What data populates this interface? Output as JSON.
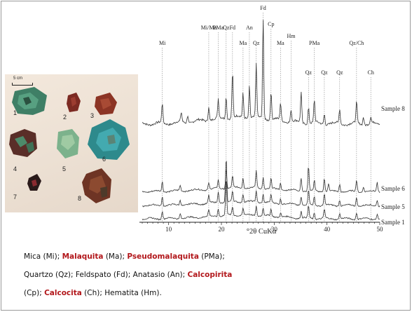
{
  "photo": {
    "scale_label": "5 cm",
    "samples": [
      "1",
      "2",
      "3",
      "4",
      "5",
      "6",
      "7",
      "8"
    ]
  },
  "chart_data": {
    "type": "line",
    "title": "",
    "xlabel": "°2θ CuKα",
    "ylabel": "",
    "xlim": [
      5,
      50
    ],
    "x_ticks": [
      "10",
      "20",
      "30",
      "40",
      "50"
    ],
    "grid": false,
    "legend": "none",
    "series": [
      {
        "name": "Sample 8",
        "label_position": "right"
      },
      {
        "name": "Sample 6",
        "label_position": "right"
      },
      {
        "name": "Sample 5",
        "label_position": "right"
      },
      {
        "name": "Sample 1",
        "label_position": "right"
      }
    ],
    "peaks": [
      {
        "label": "Mi",
        "x": 8.8
      },
      {
        "label": "Mi/Ma",
        "x": 17.6
      },
      {
        "label": "PMa",
        "x": 19.4
      },
      {
        "label": "Qz",
        "x": 20.9
      },
      {
        "label": "Fd",
        "x": 22.1
      },
      {
        "label": "Ma",
        "x": 24.1
      },
      {
        "label": "An",
        "x": 25.3
      },
      {
        "label": "Qz",
        "x": 26.6
      },
      {
        "label": "Fd",
        "x": 27.9
      },
      {
        "label": "Cp",
        "x": 29.4
      },
      {
        "label": "Ma",
        "x": 31.2
      },
      {
        "label": "Hm",
        "x": 33.2
      },
      {
        "label": "Qz",
        "x": 36.5
      },
      {
        "label": "PMa",
        "x": 37.6
      },
      {
        "label": "Qz",
        "x": 39.5
      },
      {
        "label": "Qz",
        "x": 42.4
      },
      {
        "label": "Qz/Ch",
        "x": 45.6
      },
      {
        "label": "Ch",
        "x": 48.3
      }
    ]
  },
  "caption": {
    "line1": [
      {
        "t": "Mica (Mi); ",
        "hl": false
      },
      {
        "t": "Malaquita",
        "hl": true
      },
      {
        "t": " (Ma); ",
        "hl": false
      },
      {
        "t": "Pseudomalaquita",
        "hl": true
      },
      {
        "t": " (PMa);",
        "hl": false
      }
    ],
    "line2": [
      {
        "t": "Quartzo (Qz); Feldspato (Fd); Anatasio (An); ",
        "hl": false
      },
      {
        "t": "Calcopirita",
        "hl": true
      }
    ],
    "line3": [
      {
        "t": "(Cp); ",
        "hl": false
      },
      {
        "t": "Calcocita",
        "hl": true
      },
      {
        "t": " (Ch); Hematita (Hm).",
        "hl": false
      }
    ]
  },
  "colors": {
    "highlight": "#b2171b",
    "frame": "#9a9a9a",
    "trace": "#333333"
  }
}
